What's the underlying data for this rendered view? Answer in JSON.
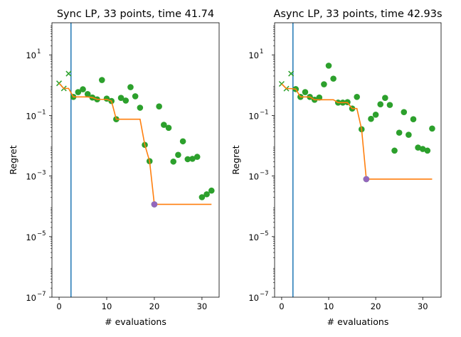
{
  "chart_data": [
    {
      "type": "scatter",
      "title": "Sync LP, 33 points, time 41.74",
      "xlabel": "# evaluations",
      "ylabel": "Regret",
      "yscale": "log",
      "xlim": [
        -1.5,
        33.6
      ],
      "ylim": [
        1e-07,
        115
      ],
      "xticks": [
        0,
        10,
        20,
        30
      ],
      "xtick_labels": [
        "0",
        "10",
        "20",
        "30"
      ],
      "yticks": [
        1e-07,
        1e-05,
        0.001,
        0.1,
        10
      ],
      "ytick_labels": [
        [
          "10",
          "−7"
        ],
        [
          "10",
          "−5"
        ],
        [
          "10",
          "−3"
        ],
        [
          "10",
          "−1"
        ],
        [
          "10",
          "1"
        ]
      ],
      "vline_x": 2.5,
      "initial_points": {
        "x": [
          0,
          1,
          2
        ],
        "y": [
          1.15,
          0.78,
          2.4
        ]
      },
      "points": {
        "x": [
          3,
          4,
          5,
          6,
          7,
          8,
          9,
          10,
          11,
          12,
          13,
          14,
          15,
          16,
          17,
          18,
          19,
          20,
          21,
          22,
          23,
          24,
          25,
          26,
          27,
          28,
          29,
          30,
          31,
          32
        ],
        "y": [
          0.41,
          0.59,
          0.73,
          0.51,
          0.39,
          0.34,
          1.48,
          0.36,
          0.3,
          0.075,
          0.38,
          0.31,
          0.86,
          0.43,
          0.18,
          0.0107,
          0.0031,
          0.000116,
          0.199,
          0.049,
          0.039,
          0.003,
          0.005,
          0.014,
          0.0036,
          0.0037,
          0.0043,
          0.0002,
          0.00025,
          0.00033
        ]
      },
      "best_point": {
        "x": 20,
        "y": 0.000116
      },
      "colors": {
        "points": "#2ca02c",
        "best_line": "#ff7f0e",
        "vline": "#1f77b4",
        "best_point": "#9467bd"
      }
    },
    {
      "type": "scatter",
      "title": "Async LP, 33 points, time 42.93s",
      "xlabel": "# evaluations",
      "ylabel": "Regret",
      "yscale": "log",
      "xlim": [
        -1.5,
        33.9
      ],
      "ylim": [
        1e-07,
        115
      ],
      "xticks": [
        0,
        10,
        20,
        30
      ],
      "xtick_labels": [
        "0",
        "10",
        "20",
        "30"
      ],
      "yticks": [
        1e-07,
        1e-05,
        0.001,
        0.1,
        10
      ],
      "ytick_labels": [
        [
          "10",
          "−7"
        ],
        [
          "10",
          "−5"
        ],
        [
          "10",
          "−3"
        ],
        [
          "10",
          "−1"
        ],
        [
          "10",
          "1"
        ]
      ],
      "vline_x": 2.4,
      "initial_points": {
        "x": [
          0,
          1,
          2
        ],
        "y": [
          1.1,
          0.77,
          2.4
        ]
      },
      "points": {
        "x": [
          3,
          4,
          5,
          6,
          7,
          8,
          9,
          10,
          11,
          12,
          13,
          14,
          15,
          16,
          17,
          18,
          19,
          20,
          21,
          22,
          23,
          24,
          25,
          26,
          27,
          28,
          29,
          30,
          31,
          32
        ],
        "y": [
          0.74,
          0.41,
          0.59,
          0.41,
          0.33,
          0.39,
          1.07,
          4.4,
          1.64,
          0.265,
          0.265,
          0.275,
          0.169,
          0.41,
          0.035,
          0.00079,
          0.077,
          0.106,
          0.234,
          0.38,
          0.222,
          0.0069,
          0.027,
          0.129,
          0.023,
          0.075,
          0.0087,
          0.0078,
          0.0069,
          0.037
        ]
      },
      "best_point": {
        "x": 18,
        "y": 0.00079
      },
      "colors": {
        "points": "#2ca02c",
        "best_line": "#ff7f0e",
        "vline": "#1f77b4",
        "best_point": "#9467bd"
      }
    }
  ]
}
